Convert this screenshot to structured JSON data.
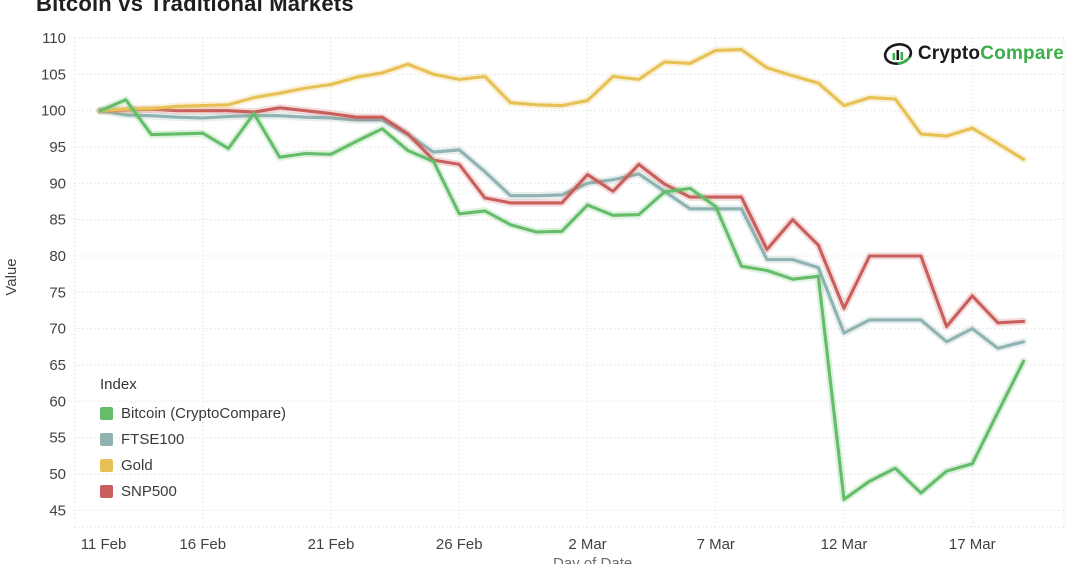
{
  "header": {
    "title": "Bitcoin vs Traditional Markets"
  },
  "branding": {
    "logo_part1": "Crypto",
    "logo_part2": "Compare",
    "accent_green": "#3cae4a",
    "accent_dark": "#1a1a1a"
  },
  "chart_data": {
    "type": "line",
    "title": "Bitcoin vs Traditional Markets",
    "xlabel": "Day of Date",
    "ylabel": "Value",
    "ylim": [
      45,
      110
    ],
    "yticks": [
      45,
      50,
      55,
      60,
      65,
      70,
      75,
      80,
      85,
      90,
      95,
      100,
      105,
      110
    ],
    "xticks": [
      {
        "day": 0,
        "label": "11 Feb"
      },
      {
        "day": 5,
        "label": "16 Feb"
      },
      {
        "day": 10,
        "label": "21 Feb"
      },
      {
        "day": 15,
        "label": "26 Feb"
      },
      {
        "day": 20,
        "label": "2 Mar"
      },
      {
        "day": 25,
        "label": "7 Mar"
      },
      {
        "day": 30,
        "label": "12 Mar"
      },
      {
        "day": 35,
        "label": "17 Mar"
      }
    ],
    "grid": "dotted",
    "legend_title": "Index",
    "legend_position": "inside-bottom-left",
    "start_day_offset": 1,
    "x_dates": [
      "12 Feb",
      "13 Feb",
      "14 Feb",
      "15 Feb",
      "16 Feb",
      "17 Feb",
      "18 Feb",
      "19 Feb",
      "20 Feb",
      "21 Feb",
      "22 Feb",
      "23 Feb",
      "24 Feb",
      "25 Feb",
      "26 Feb",
      "27 Feb",
      "28 Feb",
      "29 Feb",
      "1 Mar",
      "2 Mar",
      "3 Mar",
      "4 Mar",
      "5 Mar",
      "6 Mar",
      "7 Mar",
      "8 Mar",
      "9 Mar",
      "10 Mar",
      "11 Mar",
      "12 Mar",
      "13 Mar",
      "14 Mar",
      "15 Mar",
      "16 Mar",
      "17 Mar",
      "18 Mar",
      "19 Mar"
    ],
    "series": [
      {
        "name": "Bitcoin (CryptoCompare)",
        "color": "#65bd6a",
        "values": [
          100,
          101.5,
          96.7,
          96.8,
          96.9,
          94.8,
          99.6,
          93.6,
          94.1,
          94.0,
          95.8,
          97.5,
          94.5,
          93.0,
          85.8,
          86.2,
          84.3,
          83.3,
          83.4,
          87.0,
          85.6,
          85.7,
          88.8,
          89.3,
          86.8,
          78.6,
          78.0,
          76.8,
          77.2,
          46.5,
          49.0,
          50.8,
          47.4,
          50.4,
          51.4,
          58.5,
          65.5
        ]
      },
      {
        "name": "FTSE100",
        "color": "#8fb3b0",
        "values": [
          100,
          99.4,
          99.3,
          99.1,
          99.0,
          99.2,
          99.3,
          99.3,
          99.1,
          99.0,
          98.7,
          98.7,
          96.7,
          94.3,
          94.6,
          91.6,
          88.3,
          88.3,
          88.4,
          90.0,
          90.5,
          91.3,
          88.9,
          86.5,
          86.5,
          86.5,
          79.5,
          79.5,
          78.4,
          69.4,
          71.2,
          71.2,
          71.2,
          68.2,
          70.0,
          67.3,
          68.2
        ]
      },
      {
        "name": "Gold",
        "color": "#e8c155",
        "values": [
          100,
          100.2,
          100.3,
          100.6,
          100.7,
          100.8,
          101.8,
          102.4,
          103.1,
          103.6,
          104.6,
          105.2,
          106.4,
          105.0,
          104.3,
          104.7,
          101.1,
          100.8,
          100.7,
          101.4,
          104.7,
          104.3,
          106.7,
          106.5,
          108.3,
          108.4,
          105.9,
          104.8,
          103.8,
          100.7,
          101.8,
          101.6,
          96.8,
          96.5,
          97.6,
          95.5,
          93.3
        ]
      },
      {
        "name": "SNP500",
        "color": "#c95f5c",
        "values": [
          100,
          100.1,
          100.2,
          100.0,
          100.0,
          100.0,
          99.8,
          100.4,
          100.0,
          99.6,
          99.1,
          99.1,
          96.8,
          93.2,
          92.6,
          88.0,
          87.3,
          87.3,
          87.3,
          91.2,
          88.9,
          92.6,
          89.9,
          88.1,
          88.1,
          88.1,
          80.9,
          85.0,
          81.5,
          72.8,
          80.0,
          80.0,
          80.0,
          70.3,
          74.5,
          70.8,
          71.0
        ]
      }
    ]
  }
}
